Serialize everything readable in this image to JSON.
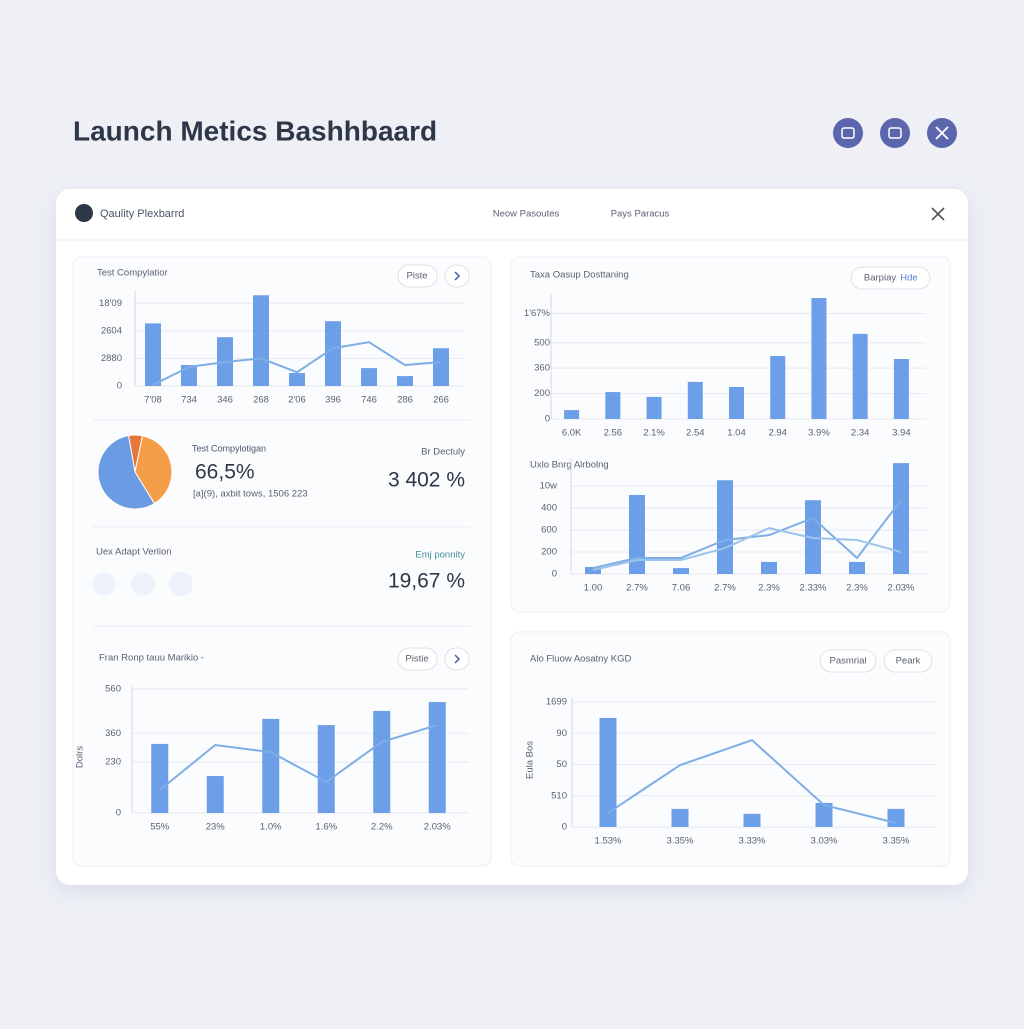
{
  "header": {
    "title": "Launch Metics Bashhbaard"
  },
  "card": {
    "title": "Qaulity Plexbarrd",
    "tabs": [
      "Neow Pasoutes",
      "Pays Paracus"
    ]
  },
  "panels": {
    "compilation": {
      "title": "Test Compylatior",
      "button": "Piste",
      "chart": {
        "type": "bar",
        "categories": [
          "7'08",
          "734",
          "346",
          "268",
          "2'06",
          "396",
          "746",
          "286",
          "266"
        ],
        "ylim": [
          0,
          3.3
        ],
        "yticks": [
          0,
          {
            "value": 1,
            "label": "2880"
          },
          {
            "value": 2,
            "label": "2604"
          },
          {
            "value": 3,
            "label": "18'09"
          }
        ],
        "grid": true,
        "series": [
          {
            "type": "bar",
            "color": "#6d9fe8",
            "values": [
              2.27,
              0.76,
              1.77,
              3.29,
              0.47,
              2.35,
              0.65,
              0.36,
              1.37
            ]
          },
          {
            "type": "line",
            "color": "#7eaee6",
            "values": [
              0.04,
              0.69,
              0.87,
              1.0,
              0.5,
              1.37,
              1.59,
              0.76,
              0.87
            ]
          }
        ]
      }
    },
    "summary": {
      "pie": {
        "type": "pie",
        "values": [
          6,
          38,
          56
        ],
        "colors": [
          "#e8763a",
          "#f59d47",
          "#6b9be3"
        ]
      },
      "label": "Test Compylotigan",
      "value": "66,5%",
      "note": "[a](9), axbit tows, 1506 223",
      "right_label": "Br Dectuly",
      "right_value": "3 402 %"
    },
    "version": {
      "title": "Uex Adapt Verlion",
      "right_label": "Emj ponnity",
      "right_value": "19,67 %"
    },
    "flow": {
      "title": "Fran Ronp tauu Marikio -",
      "button": "Pistie",
      "chart": {
        "type": "bar",
        "ylabel": "Dolrs",
        "categories": [
          "55%",
          "23%",
          "1.0%",
          "1.6%",
          "2.2%",
          "2.03%"
        ],
        "ylim": [
          0,
          560
        ],
        "yticks": [
          0,
          230,
          360,
          560
        ],
        "grid": true,
        "series": [
          {
            "type": "bar",
            "color": "#6d9fe8",
            "values": [
              312,
              167,
              425,
              397,
              461,
              501
            ]
          },
          {
            "type": "line",
            "color": "#7eaee6",
            "values": [
              104,
              307,
              275,
              140,
              321,
              397
            ]
          }
        ]
      }
    },
    "rollout": {
      "title": "Taxa Oasup Dosttaning",
      "button": [
        "Barpiay",
        "Hde"
      ],
      "chart": {
        "type": "bar",
        "categories": [
          "6.0K",
          "2.56",
          "2.1%",
          "2.54",
          "1.04",
          "2.94",
          "3.9%",
          "2.34",
          "3.94"
        ],
        "ylim": [
          0,
          4.8
        ],
        "yticks": [
          0,
          {
            "value": 1,
            "label": "200"
          },
          {
            "value": 2,
            "label": "360"
          },
          {
            "value": 3,
            "label": "500"
          },
          {
            "value": 4.15,
            "label": "1'67%"
          }
        ],
        "grid": true,
        "series": [
          {
            "type": "bar",
            "color": "#6d9fe8",
            "values": [
              0.35,
              1.06,
              0.87,
              1.46,
              1.26,
              2.48,
              4.76,
              3.35,
              2.36
            ]
          }
        ]
      }
    },
    "uplift": {
      "title": "Uxlo Bnrg Alrbolng",
      "chart": {
        "type": "bar",
        "categories": [
          "1.00",
          "2.7%",
          "7.06",
          "2.7%",
          "2.3%",
          "2.33%",
          "2.3%",
          "2.03%"
        ],
        "ylim": [
          0,
          5.1
        ],
        "yticks": [
          0,
          {
            "value": 1,
            "label": "200"
          },
          {
            "value": 2,
            "label": "600"
          },
          {
            "value": 3,
            "label": "400"
          },
          {
            "value": 4,
            "label": "10w"
          }
        ],
        "grid": true,
        "series": [
          {
            "type": "bar",
            "color": "#6d9fe8",
            "values": [
              0.32,
              3.6,
              0.27,
              4.27,
              0.55,
              3.36,
              0.55,
              5.05
            ]
          },
          {
            "type": "line",
            "color": "#7eaee6",
            "values": [
              0.27,
              0.73,
              0.73,
              1.55,
              1.77,
              2.55,
              0.73,
              3.36
            ]
          },
          {
            "type": "line",
            "color": "#9cc3ec",
            "values": [
              0.18,
              0.64,
              0.64,
              1.18,
              2.09,
              1.64,
              1.55,
              1.0
            ]
          }
        ]
      }
    },
    "aosatny": {
      "title": "Alo Fluow Aosatny KGD",
      "buttons": [
        "Pasmrial",
        "Peark"
      ],
      "chart": {
        "type": "bar",
        "ylabel": "Eula Bos",
        "categories": [
          "1.53%",
          "3.35%",
          "3.33%",
          "3.03%",
          "3.35%"
        ],
        "ylim": [
          0,
          4
        ],
        "yticks": [
          0,
          {
            "value": 1,
            "label": "510"
          },
          {
            "value": 2,
            "label": "50"
          },
          {
            "value": 3,
            "label": "90"
          },
          {
            "value": 4,
            "label": "1699"
          }
        ],
        "grid": true,
        "series": [
          {
            "type": "bar",
            "color": "#6d9fe8",
            "values": [
              3.49,
              0.58,
              0.42,
              0.77,
              0.58
            ]
          },
          {
            "type": "line",
            "color": "#7eaee6",
            "values": [
              0.45,
              1.98,
              2.78,
              0.7,
              0.13
            ]
          }
        ]
      }
    }
  }
}
